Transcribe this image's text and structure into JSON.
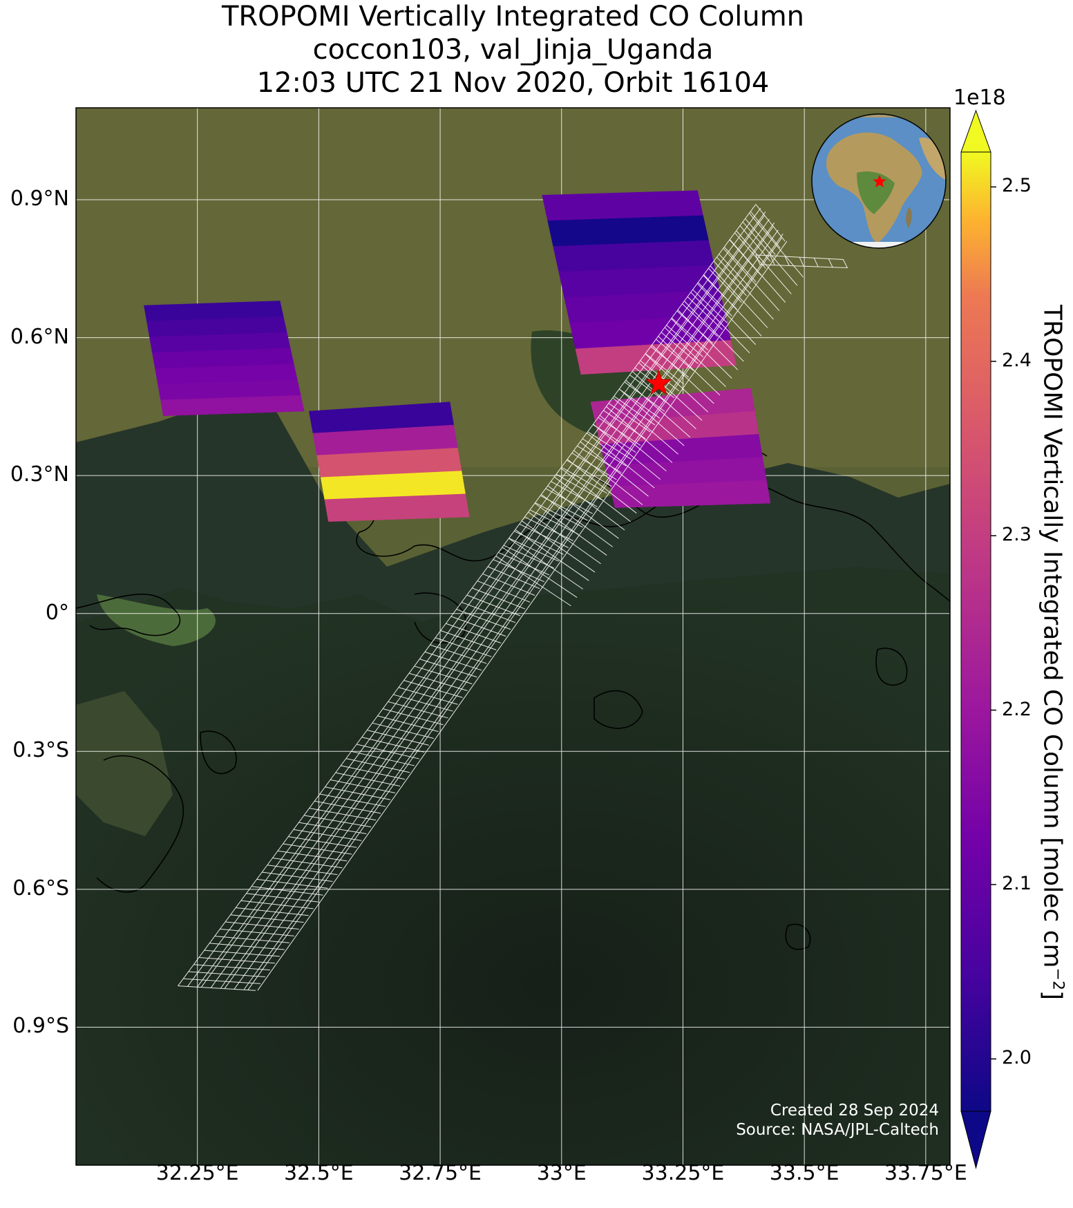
{
  "title": {
    "line1": "TROPOMI Vertically Integrated CO Column",
    "line2": "coccon103, val_Jinja_Uganda",
    "line3": "12:03 UTC 21 Nov 2020, Orbit 16104"
  },
  "map": {
    "extent": {
      "lon_min": 32.0,
      "lon_max": 33.8,
      "lat_min": -1.2,
      "lat_max": 1.1
    },
    "background": "satellite imagery (land green/brown, Lake Victoria dark)",
    "gridlines": true,
    "lat_ticks": [
      {
        "value": 0.9,
        "label": "0.9°N"
      },
      {
        "value": 0.6,
        "label": "0.6°N"
      },
      {
        "value": 0.3,
        "label": "0.3°N"
      },
      {
        "value": 0.0,
        "label": "0°"
      },
      {
        "value": -0.3,
        "label": "0.3°S"
      },
      {
        "value": -0.6,
        "label": "0.6°S"
      },
      {
        "value": -0.9,
        "label": "0.9°S"
      }
    ],
    "lon_ticks": [
      {
        "value": 32.25,
        "label": "32.25°E"
      },
      {
        "value": 32.5,
        "label": "32.5°E"
      },
      {
        "value": 32.75,
        "label": "32.75°E"
      },
      {
        "value": 33.0,
        "label": "33°E"
      },
      {
        "value": 33.25,
        "label": "33.25°E"
      },
      {
        "value": 33.5,
        "label": "33.5°E"
      },
      {
        "value": 33.75,
        "label": "33.75°E"
      }
    ],
    "site_marker": {
      "lon": 33.2,
      "lat": 0.5,
      "symbol": "star",
      "color": "#ff0000"
    },
    "colormap": "plasma",
    "inset": "globe centered on Africa with red star at site"
  },
  "chart_data": {
    "type": "heatmap",
    "variable": "TROPOMI Vertically Integrated CO Column",
    "units": "molec cm^-2",
    "scale_factor": 1e+18,
    "vmin": 1.97,
    "vmax": 2.52,
    "colorbar_extend": "both",
    "pixels": [
      {
        "corners": [
          [
            32.14,
            0.67
          ],
          [
            32.42,
            0.68
          ],
          [
            32.47,
            0.44
          ],
          [
            32.18,
            0.43
          ]
        ],
        "bands": [
          2.03,
          2.05,
          2.08,
          2.11,
          2.13,
          2.14,
          2.18
        ]
      },
      {
        "corners": [
          [
            32.48,
            0.44
          ],
          [
            32.77,
            0.46
          ],
          [
            32.81,
            0.21
          ],
          [
            32.52,
            0.2
          ]
        ],
        "bands": [
          2.03,
          2.22,
          2.35,
          2.51,
          2.31
        ]
      },
      {
        "corners": [
          [
            32.96,
            0.91
          ],
          [
            33.28,
            0.92
          ],
          [
            33.36,
            0.54
          ],
          [
            33.04,
            0.52
          ]
        ],
        "bands": [
          2.09,
          1.98,
          2.05,
          2.08,
          2.1,
          2.12,
          2.3
        ]
      },
      {
        "corners": [
          [
            33.06,
            0.46
          ],
          [
            33.39,
            0.49
          ],
          [
            33.43,
            0.24
          ],
          [
            33.11,
            0.23
          ]
        ],
        "bands": [
          2.24,
          2.27,
          2.16,
          2.18,
          2.2
        ]
      }
    ],
    "footprint_grid": {
      "color": "#ffffff",
      "swath": [
        [
          32.21,
          -0.81
        ],
        [
          32.37,
          -0.82
        ],
        [
          33.46,
          0.81
        ],
        [
          33.4,
          0.89
        ]
      ],
      "extra_cells": [
        [
          33.4,
          0.78
        ],
        [
          33.58,
          0.77
        ]
      ]
    }
  },
  "colorbar": {
    "exponent_label": "1e18",
    "label": "TROPOMI Vertically Integrated CO Column [molec cm",
    "label_superscript": "−2",
    "label_suffix": "]",
    "ticks": [
      {
        "value": 2.0,
        "label": "2.0"
      },
      {
        "value": 2.1,
        "label": "2.1"
      },
      {
        "value": 2.2,
        "label": "2.2"
      },
      {
        "value": 2.3,
        "label": "2.3"
      },
      {
        "value": 2.4,
        "label": "2.4"
      },
      {
        "value": 2.5,
        "label": "2.5"
      }
    ]
  },
  "credits": {
    "created": "Created 28 Sep 2024",
    "source": "Source: NASA/JPL-Caltech"
  }
}
